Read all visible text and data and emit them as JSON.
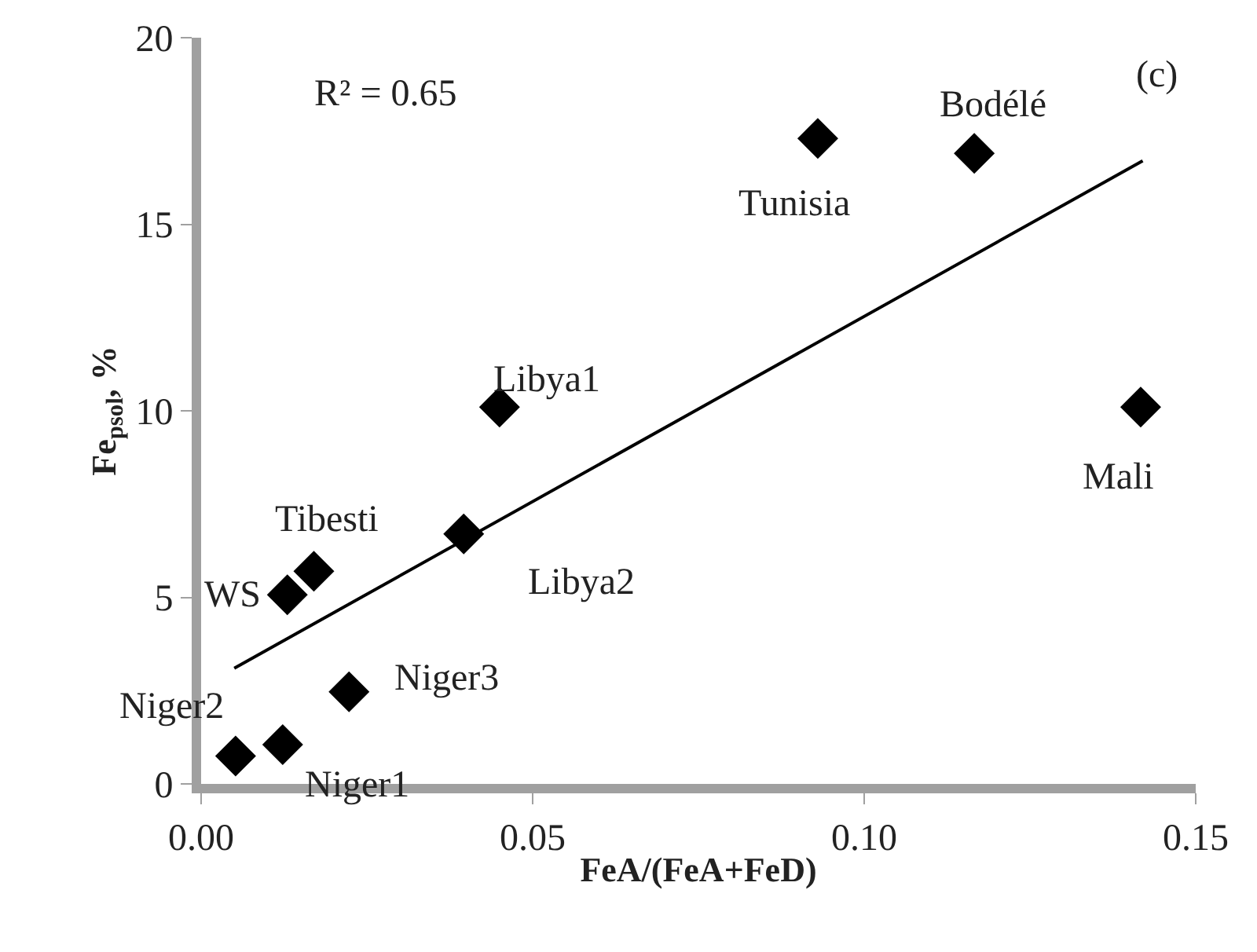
{
  "chart_data": {
    "type": "scatter",
    "xlabel": "FeA/(FeA+FeD)",
    "ylabel": "Fe$_{psol}$, %",
    "xlim": [
      0,
      0.15
    ],
    "xticks": [
      {
        "value": 0,
        "label": "0.00"
      },
      0.05,
      {
        "value": 0.1,
        "label": "0.10"
      },
      0.15
    ],
    "ylim": [
      0,
      20
    ],
    "yticks": [
      0,
      5,
      10,
      15,
      20
    ],
    "marker": "diamond",
    "series": [
      {
        "color": "#000000",
        "x": [
          0.0052,
          0.0123,
          0.0223,
          0.013,
          0.017,
          0.0396,
          0.045,
          0.093,
          0.1166,
          0.1417
        ],
        "values": [
          0.75,
          1.05,
          2.47,
          5.07,
          5.7,
          6.7,
          10.1,
          17.3,
          16.9,
          10.1
        ]
      },
      {
        "type": "line",
        "color": "#000000",
        "marker": "none",
        "line_style": "solid",
        "x": [
          0.005,
          0.142
        ],
        "values": [
          3.1,
          16.7
        ]
      }
    ],
    "annotations": [
      {
        "text": "Niger2",
        "x": 0.0052,
        "y": 0.75
      },
      {
        "text": "Niger1",
        "x": 0.0123,
        "y": 1.05
      },
      {
        "text": "Niger3",
        "x": 0.0223,
        "y": 2.47
      },
      {
        "text": "WS",
        "x": 0.013,
        "y": 5.07
      },
      {
        "text": "Tibesti",
        "x": 0.017,
        "y": 5.7
      },
      {
        "text": "Libya2",
        "x": 0.0396,
        "y": 6.7
      },
      {
        "text": "Libya1",
        "x": 0.045,
        "y": 10.1
      },
      {
        "text": "Tunisia",
        "x": 0.093,
        "y": 17.3
      },
      {
        "text": "Bodélé",
        "x": 0.1166,
        "y": 16.9
      },
      {
        "text": "Mali",
        "x": 0.1417,
        "y": 10.1
      },
      "R² = 0.65",
      "(c)"
    ]
  }
}
